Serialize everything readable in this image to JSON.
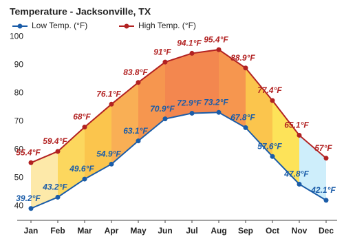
{
  "chart_data": {
    "type": "line",
    "title": "Temperature - Jacksonville, TX",
    "categories": [
      "Jan",
      "Feb",
      "Mar",
      "Apr",
      "May",
      "Jun",
      "Jul",
      "Aug",
      "Sep",
      "Oct",
      "Nov",
      "Dec"
    ],
    "series": [
      {
        "name": "Low Temp. (°F)",
        "color": "#1a5ca8",
        "values": [
          39.2,
          43.2,
          49.6,
          54.9,
          63.1,
          70.9,
          72.9,
          73.2,
          67.8,
          57.6,
          47.8,
          42.1
        ],
        "value_labels": [
          "39.2°F",
          "43.2°F",
          "49.6°F",
          "54.9°F",
          "63.1°F",
          "70.9°F",
          "72.9°F",
          "73.2°F",
          "67.8°F",
          "57.6°F",
          "47.8°F",
          "42.1°F"
        ]
      },
      {
        "name": "High Temp. (°F)",
        "color": "#b22222",
        "values": [
          55.4,
          59.4,
          68,
          76.1,
          83.8,
          91,
          94.1,
          95.4,
          88.9,
          77.4,
          65.1,
          57
        ],
        "value_labels": [
          "55.4°F",
          "59.4°F",
          "68°F",
          "76.1°F",
          "83.8°F",
          "91°F",
          "94.1°F",
          "95.4°F",
          "88.9°F",
          "77.4°F",
          "65.1°F",
          "57°F"
        ]
      }
    ],
    "ylim": [
      35,
      102
    ],
    "yticks": [
      40,
      50,
      60,
      70,
      80,
      90,
      100
    ],
    "grid": false,
    "legend": "top"
  }
}
